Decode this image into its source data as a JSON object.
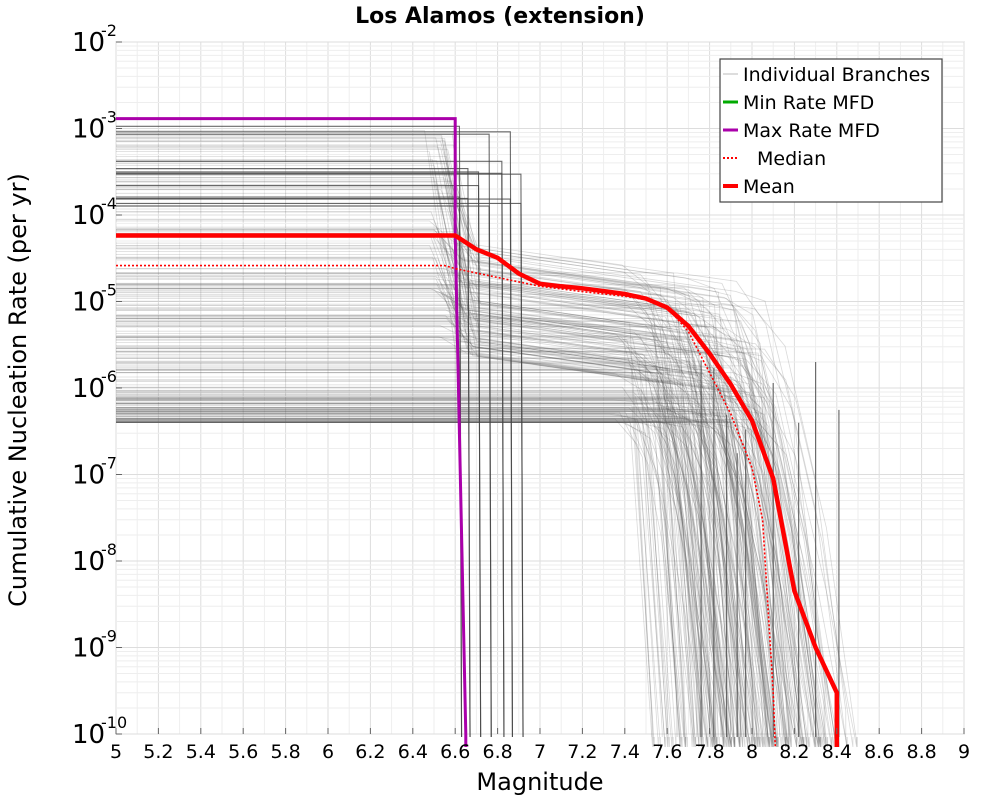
{
  "chart_data": {
    "type": "line",
    "title": "Los Alamos (extension)",
    "xlabel": "Magnitude",
    "ylabel": "Cumulative Nucleation Rate (per yr)",
    "xlim": [
      5,
      9
    ],
    "ylim": [
      1e-10,
      0.01
    ],
    "yscale": "log",
    "grid": true,
    "legend_position": "top-right",
    "x_ticks": [
      "5",
      "5.2",
      "5.4",
      "5.6",
      "5.8",
      "6",
      "6.2",
      "6.4",
      "6.6",
      "6.8",
      "7",
      "7.2",
      "7.4",
      "7.6",
      "7.8",
      "8",
      "8.2",
      "8.4",
      "8.6",
      "8.8",
      "9"
    ],
    "y_ticks": [
      {
        "base": "10",
        "exp": "-2",
        "value": 0.01
      },
      {
        "base": "10",
        "exp": "-3",
        "value": 0.001
      },
      {
        "base": "10",
        "exp": "-4",
        "value": 0.0001
      },
      {
        "base": "10",
        "exp": "-5",
        "value": 1e-05
      },
      {
        "base": "10",
        "exp": "-6",
        "value": 1e-06
      },
      {
        "base": "10",
        "exp": "-7",
        "value": 1e-07
      },
      {
        "base": "10",
        "exp": "-8",
        "value": 1e-08
      },
      {
        "base": "10",
        "exp": "-9",
        "value": 1e-09
      },
      {
        "base": "10",
        "exp": "-10",
        "value": 1e-10
      }
    ],
    "series": [
      {
        "name": "Individual Branches",
        "color": "#555555",
        "style": "thin-translucent",
        "note_count": "many",
        "x": [],
        "y": []
      },
      {
        "name": "Min Rate MFD",
        "color": "#00aa00",
        "style": "solid",
        "x": [],
        "y": []
      },
      {
        "name": "Max Rate MFD",
        "color": "#aa00aa",
        "style": "solid",
        "x": [
          5.0,
          6.6,
          6.6,
          6.65,
          6.65
        ],
        "y": [
          0.0013,
          0.0013,
          6e-05,
          1e-10,
          1e-11
        ]
      },
      {
        "name": "Median",
        "color": "#ff0000",
        "style": "dotted",
        "x": [
          5.0,
          6.55,
          6.6,
          7.0,
          7.2,
          7.4,
          7.5,
          7.6,
          7.7,
          7.8,
          7.9,
          8.0,
          8.05,
          8.1,
          8.11
        ],
        "y": [
          2.6e-05,
          2.6e-05,
          2.4e-05,
          1.5e-05,
          1.3e-05,
          1.15e-05,
          1.05e-05,
          8.5e-06,
          4.5e-06,
          1.5e-06,
          5e-07,
          1.2e-07,
          3e-08,
          3e-10,
          1e-11
        ]
      },
      {
        "name": "Mean",
        "color": "#ff0000",
        "style": "thick",
        "x": [
          5.0,
          6.6,
          6.7,
          6.8,
          6.9,
          7.0,
          7.1,
          7.2,
          7.3,
          7.4,
          7.5,
          7.6,
          7.7,
          7.8,
          7.9,
          8.0,
          8.1,
          8.2,
          8.3,
          8.4,
          8.4
        ],
        "y": [
          5.8e-05,
          5.8e-05,
          4e-05,
          3.2e-05,
          2.1e-05,
          1.6e-05,
          1.5e-05,
          1.42e-05,
          1.32e-05,
          1.22e-05,
          1.08e-05,
          8.5e-06,
          5.2e-06,
          2.5e-06,
          1.1e-06,
          4.2e-07,
          9e-08,
          4.5e-09,
          1e-09,
          3e-10,
          1e-11
        ]
      }
    ]
  },
  "legend": {
    "items": [
      {
        "label": "Individual Branches",
        "color": "#bbbbbb",
        "style": "thin"
      },
      {
        "label": "Min Rate MFD",
        "color": "#00aa00",
        "style": "solid"
      },
      {
        "label": "Max Rate MFD",
        "color": "#aa00aa",
        "style": "solid"
      },
      {
        "label": "Median",
        "color": "#ff0000",
        "style": "dotted"
      },
      {
        "label": "Mean",
        "color": "#ff0000",
        "style": "thick"
      }
    ]
  }
}
